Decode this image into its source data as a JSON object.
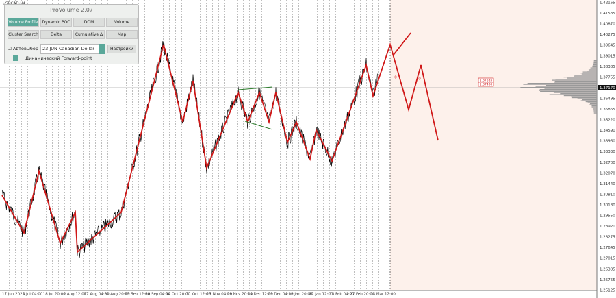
{
  "symbol": "USDCAD,H4",
  "panel": {
    "title": "ProVolume 2.07",
    "buttons": [
      "Volume Profile",
      "Dynamic POC",
      "DOM",
      "Volume",
      "Cluster Search",
      "Delta",
      "Cumulative Δ",
      "Map"
    ],
    "auto_select": "Автовыбор",
    "instrument": "23 JUN Canadian Dollar",
    "settings": "Настройки",
    "forward_point": "Динамический Forward-point"
  },
  "price_axis": [
    "1.42165",
    "1.41535",
    "1.40870",
    "1.40275",
    "1.39645",
    "1.39015",
    "1.38385",
    "1.37755",
    "1.37170",
    "1.36495",
    "1.35865",
    "1.35220",
    "1.34590",
    "1.33960",
    "1.33330",
    "1.32700",
    "1.32070",
    "1.31440",
    "1.30810",
    "1.30180",
    "1.29550",
    "1.28920",
    "1.28275",
    "1.27645",
    "1.27015",
    "1.26385",
    "1.25755",
    "1.25125"
  ],
  "time_axis": [
    "17 Jun 2022",
    "4 Jul 04:00",
    "18 Jul 20:00",
    "2 Aug 12:00",
    "17 Aug 04:00",
    "31 Aug 20:00",
    "15 Sep 12:00",
    "30 Sep 04:00",
    "14 Oct 20:00",
    "31 Oct 12:00",
    "15 Nov 04:00",
    "29 Nov 20:00",
    "14 Dec 12:00",
    "29 Dec 04:00",
    "12 Jan 20:00",
    "27 Jan 12:00",
    "13 Feb 04:00",
    "27 Feb 20:00",
    "14 Mar 12:00"
  ],
  "level_labels": [
    "1.37535",
    "1.37400"
  ],
  "markers": [
    "0",
    "0"
  ]
}
